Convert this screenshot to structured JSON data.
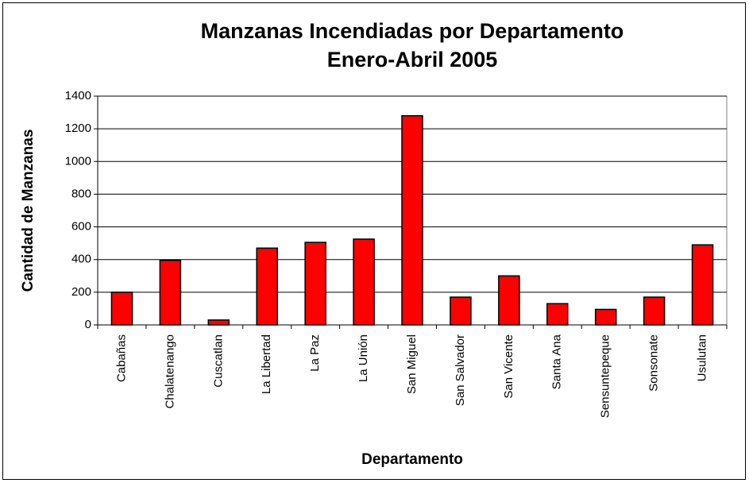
{
  "chart_data": {
    "type": "bar",
    "title": "Manzanas Incendiadas por Departamento",
    "subtitle": "Enero-Abril 2005",
    "x_label": "Departamento",
    "y_label": "Cantidad de Manzanas",
    "categories": [
      "Cabañas",
      "Chalatenango",
      "Cuscatlan",
      "La Libertad",
      "La Paz",
      "La Unión",
      "San Miguel",
      "San Salvador",
      "San Vicente",
      "Santa Ana",
      "Sensuntepeque",
      "Sonsonate",
      "Usulutan"
    ],
    "values": [
      200,
      395,
      30,
      470,
      505,
      525,
      1280,
      170,
      300,
      130,
      95,
      170,
      490
    ],
    "color": "#ff0000",
    "ylim": [
      0,
      1400
    ],
    "yticks": [
      0,
      200,
      400,
      600,
      800,
      1000,
      1200,
      1400
    ],
    "grid": true
  }
}
